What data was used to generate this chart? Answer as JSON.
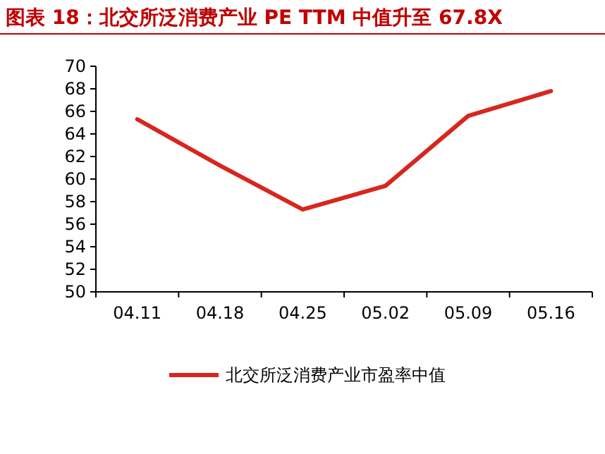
{
  "chart_data": {
    "type": "line",
    "title": "图表 18：北交所泛消费产业 PE TTM 中值升至 67.8X",
    "categories": [
      "04.11",
      "04.18",
      "04.25",
      "05.02",
      "05.09",
      "05.16"
    ],
    "series": [
      {
        "name": "北交所泛消费产业市盈率中值",
        "color": "#d7261e",
        "values": [
          65.3,
          61.2,
          57.3,
          59.4,
          65.6,
          67.8
        ]
      }
    ],
    "ylim": [
      50,
      70
    ],
    "yticks": [
      50,
      52,
      54,
      56,
      58,
      60,
      62,
      64,
      66,
      68,
      70
    ],
    "grid": false,
    "legend": "bottom",
    "marker": "none",
    "line_style": "solid"
  }
}
